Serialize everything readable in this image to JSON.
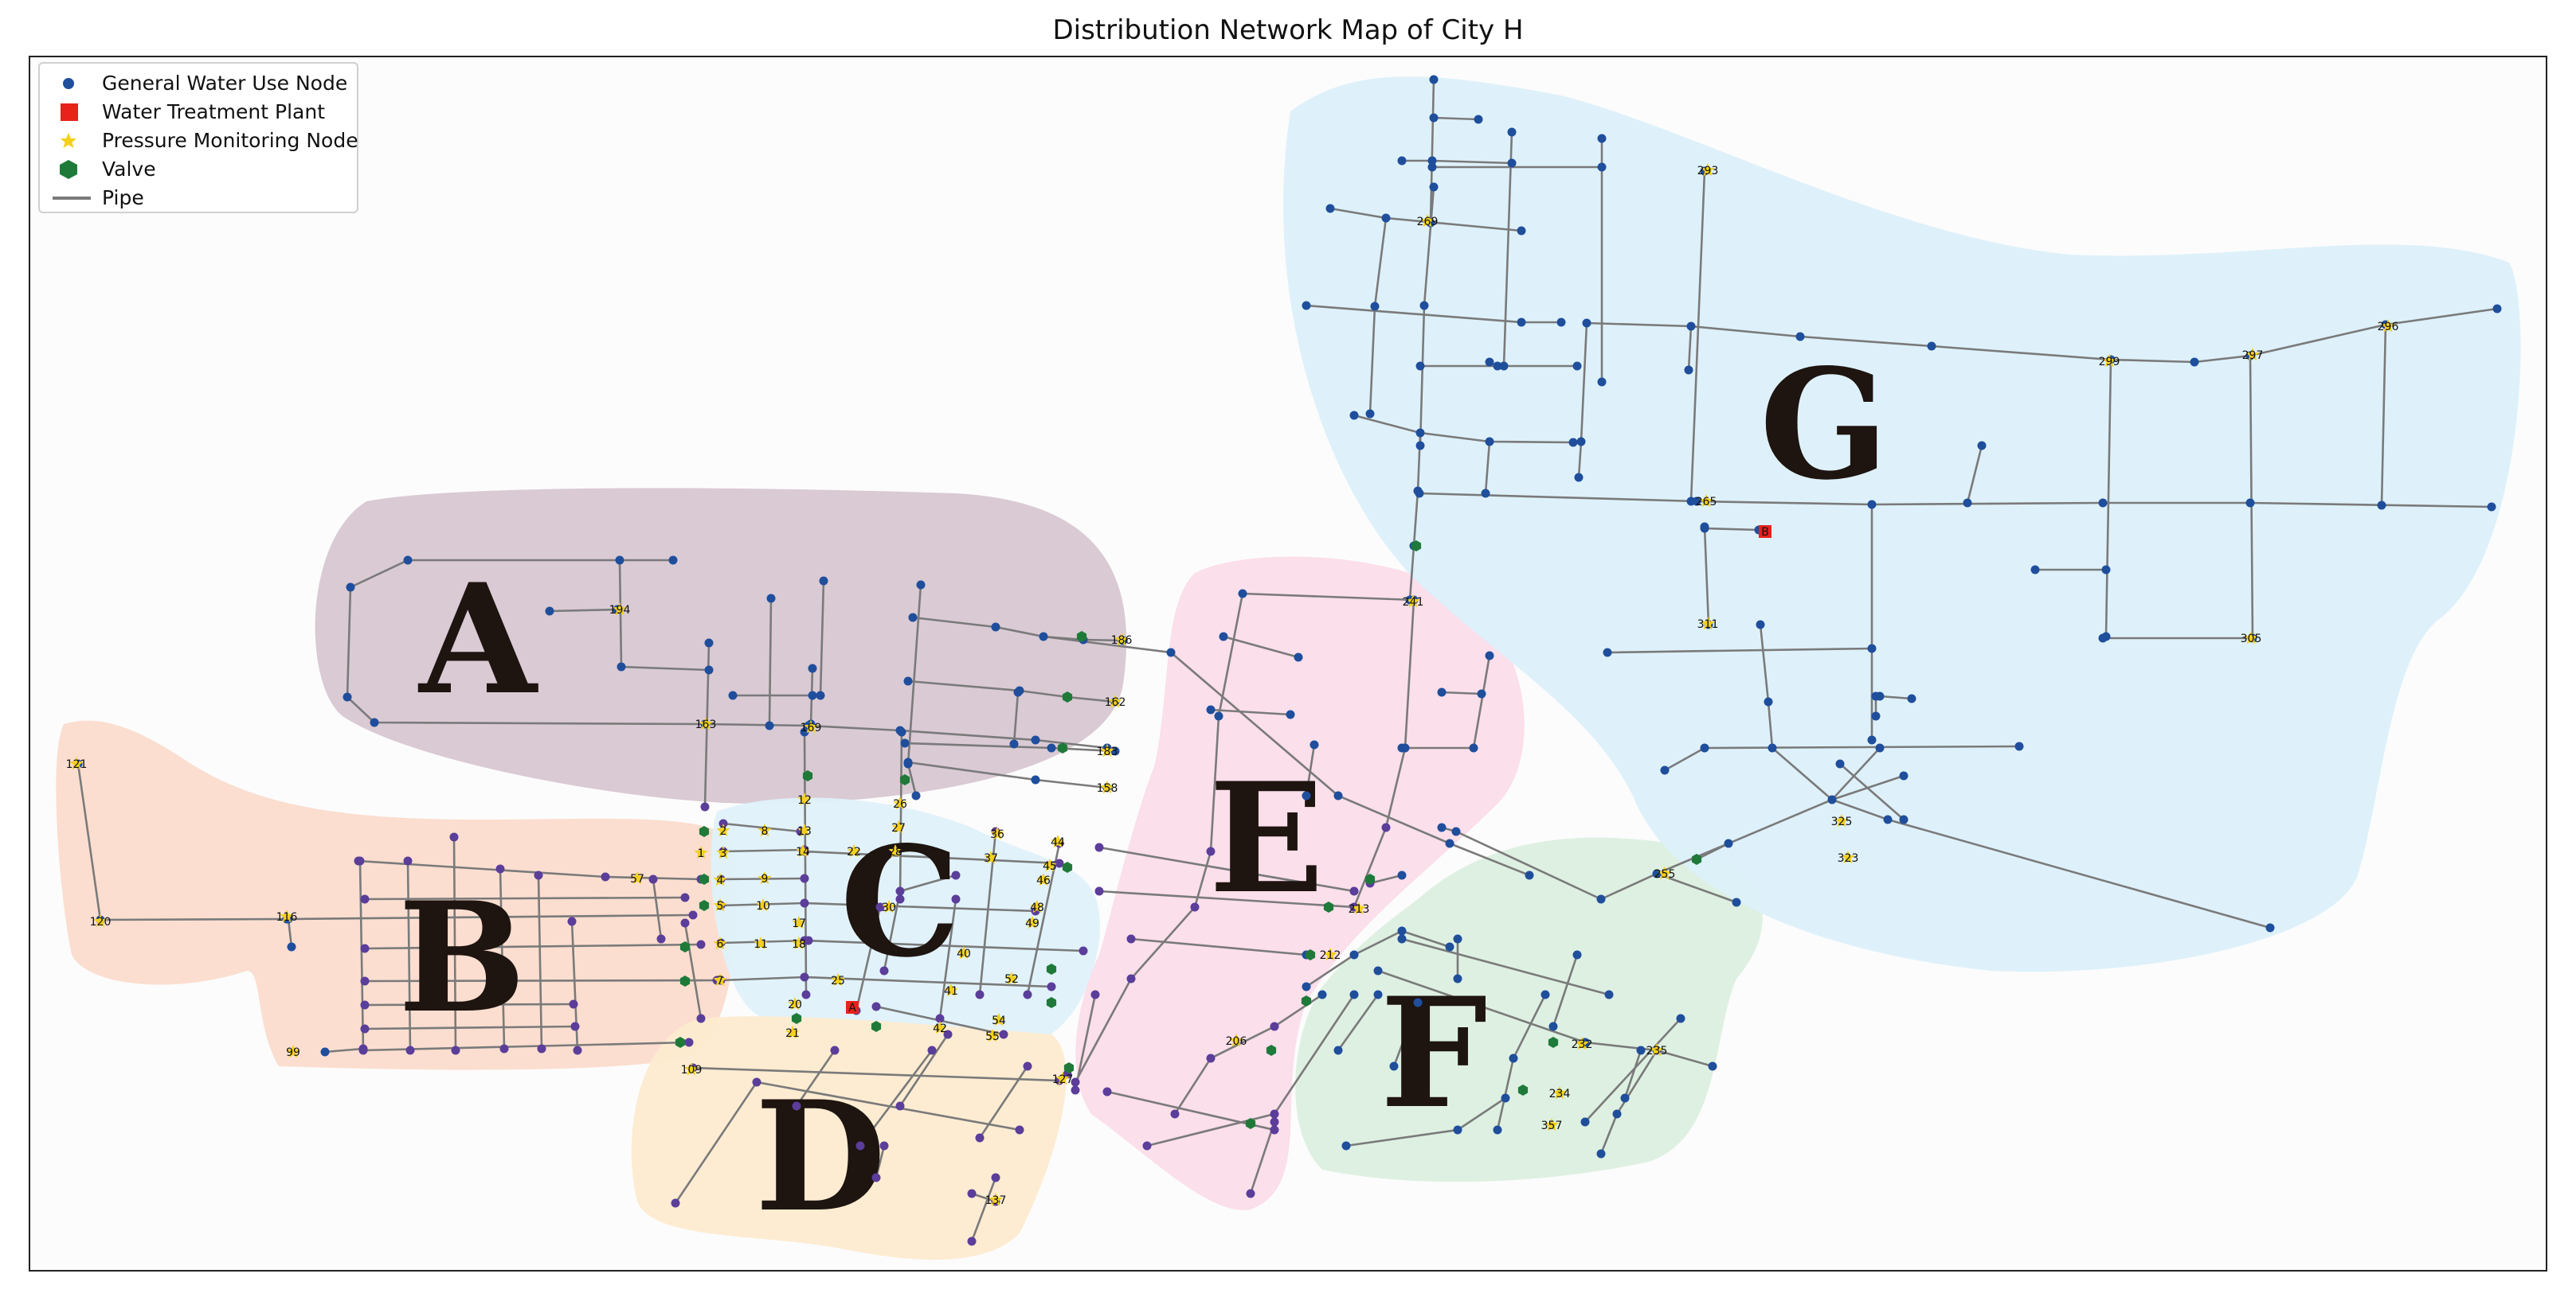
{
  "title": "Distribution Network Map of City H",
  "legend": {
    "items": [
      {
        "label": "General Water Use Node",
        "icon": "blue-dot-icon",
        "color": "#1f4e9c"
      },
      {
        "label": "Water Treatment Plant",
        "icon": "red-square-icon",
        "color": "#e8211b"
      },
      {
        "label": "Pressure Monitoring Node",
        "icon": "yellow-star-icon",
        "color": "#f4d01c"
      },
      {
        "label": "Valve",
        "icon": "green-hexagon-icon",
        "color": "#1f7a3a"
      },
      {
        "label": "Pipe",
        "icon": "gray-line-icon",
        "color": "#7a7a7a"
      }
    ]
  },
  "zones": [
    {
      "id": "A",
      "label": "A",
      "color": "#d8c7d2"
    },
    {
      "id": "B",
      "label": "B",
      "color": "#fbdccd"
    },
    {
      "id": "C",
      "label": "C",
      "color": "#dff1fa"
    },
    {
      "id": "D",
      "label": "D",
      "color": "#fdebd0"
    },
    {
      "id": "E",
      "label": "E",
      "color": "#fbdde9"
    },
    {
      "id": "F",
      "label": "F",
      "color": "#dcefe0"
    },
    {
      "id": "G",
      "label": "G",
      "color": "#dcf0fa"
    }
  ],
  "pressure_nodes": [
    "1",
    "2",
    "3",
    "4",
    "5",
    "6",
    "7",
    "8",
    "9",
    "10",
    "11",
    "12",
    "13",
    "14",
    "17",
    "18",
    "20",
    "21",
    "22",
    "25",
    "26",
    "27",
    "28",
    "30",
    "36",
    "37",
    "40",
    "41",
    "42",
    "44",
    "45",
    "46",
    "48",
    "49",
    "52",
    "54",
    "55",
    "57",
    "99",
    "109",
    "116",
    "120",
    "121",
    "127",
    "137",
    "158",
    "162",
    "163",
    "169",
    "183",
    "186",
    "194",
    "206",
    "212",
    "213",
    "232",
    "234",
    "235",
    "241",
    "255",
    "265",
    "269",
    "293",
    "296",
    "297",
    "299",
    "305",
    "311",
    "323",
    "325",
    "357"
  ],
  "treatment_plants": [
    "A",
    "B"
  ],
  "colors": {
    "pipe": "#7a7a7a",
    "node_general": "#1f4e9c",
    "node_purple": "#5b3d9a",
    "pressure": "#f4d01c",
    "valve": "#1f7a3a",
    "plant": "#e8211b"
  }
}
